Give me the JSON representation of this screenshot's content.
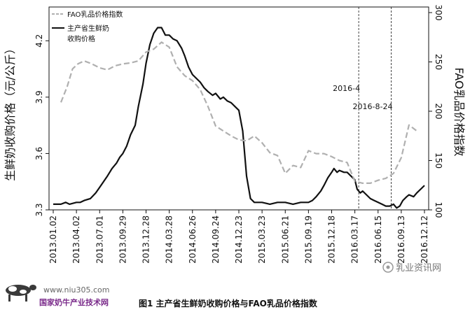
{
  "caption": "图1 主产省生鲜奶收购价格与FAO乳品价格指数",
  "watermark": {
    "site": "www.niu305.com",
    "org": "国家奶牛产业技术网",
    "brand": "乳业资讯网"
  },
  "colors": {
    "milk": "#111111",
    "fao": "#b0b0b0",
    "axis": "#111111",
    "marker": "#444444"
  },
  "chart_data": {
    "type": "line",
    "ylabel": "生鲜奶收购价格（元/公斤）",
    "y2label": "FAO乳品价格指数",
    "ylim": [
      3.3,
      4.35
    ],
    "y2lim": [
      100,
      300
    ],
    "yticks": [
      3.3,
      3.6,
      3.9,
      4.2
    ],
    "y2ticks": [
      100,
      150,
      200,
      250,
      300
    ],
    "xlim": [
      0,
      48
    ],
    "x_tick_labels": [
      "2013.01.02",
      "2013.04.02",
      "2013.07.01",
      "2013.09.29",
      "2013.12.28",
      "2014.03.28",
      "2014.06.26",
      "2014.09.24",
      "2014.12.23",
      "2015.03.23",
      "2015.06.21",
      "2015.09.19",
      "2015.12.18",
      "2016.03.17",
      "2016.06.15",
      "2016.09.13",
      "2016.12.12"
    ],
    "x_tick_positions": [
      0,
      3,
      6,
      9,
      12,
      15,
      18,
      21,
      24,
      27,
      30,
      33,
      36,
      39,
      42,
      45,
      48
    ],
    "legend": {
      "position": "top-left",
      "entries": [
        "FAO乳品价格指数",
        "主产省生鲜奶收购价格"
      ]
    },
    "annotations": [
      {
        "label": "2016-4",
        "x": 39.5
      },
      {
        "label": "2016-8-24",
        "x": 43.7
      }
    ],
    "series": [
      {
        "name": "主产省生鲜奶收购价格",
        "axis": "left",
        "style": "solid",
        "x": [
          0,
          1,
          1.6,
          2.1,
          3,
          3.5,
          4,
          4.8,
          5.5,
          6,
          6.5,
          7,
          7.6,
          8.2,
          8.6,
          9,
          9.5,
          10,
          10.6,
          11,
          11.6,
          12,
          12.5,
          13,
          13.5,
          14,
          14.5,
          15,
          15.5,
          16,
          16.6,
          17,
          17.5,
          18,
          18.5,
          19,
          19.5,
          20,
          20.6,
          21,
          21.6,
          22,
          22.5,
          23,
          23.5,
          24,
          24.5,
          25,
          25.5,
          26,
          26.5,
          27,
          28,
          29,
          30,
          31,
          32,
          33,
          33.5,
          34,
          34.6,
          35,
          35.5,
          36,
          36.3,
          36.7,
          37,
          37.6,
          38,
          38.5,
          39,
          39.3,
          39.7,
          40,
          40.5,
          41,
          41.5,
          42,
          42.5,
          43,
          43.5,
          44,
          44.4,
          44.8,
          45.2,
          45.7,
          46,
          46.6,
          47,
          47.5,
          48
        ],
        "y": [
          3.33,
          3.33,
          3.34,
          3.33,
          3.34,
          3.34,
          3.35,
          3.36,
          3.39,
          3.42,
          3.45,
          3.48,
          3.52,
          3.55,
          3.58,
          3.6,
          3.64,
          3.7,
          3.75,
          3.85,
          3.97,
          4.08,
          4.18,
          4.24,
          4.27,
          4.27,
          4.23,
          4.23,
          4.21,
          4.2,
          4.16,
          4.12,
          4.06,
          4.02,
          4.0,
          3.98,
          3.95,
          3.93,
          3.91,
          3.92,
          3.89,
          3.9,
          3.88,
          3.87,
          3.85,
          3.83,
          3.72,
          3.48,
          3.36,
          3.34,
          3.34,
          3.34,
          3.33,
          3.34,
          3.34,
          3.33,
          3.34,
          3.34,
          3.35,
          3.37,
          3.4,
          3.43,
          3.47,
          3.5,
          3.52,
          3.5,
          3.51,
          3.5,
          3.5,
          3.48,
          3.46,
          3.41,
          3.39,
          3.4,
          3.38,
          3.36,
          3.35,
          3.34,
          3.33,
          3.32,
          3.32,
          3.33,
          3.31,
          3.32,
          3.35,
          3.37,
          3.38,
          3.37,
          3.39,
          3.41,
          3.43
        ]
      },
      {
        "name": "FAO乳品价格指数",
        "axis": "right",
        "style": "dashed",
        "x": [
          1,
          1.8,
          2.5,
          3.2,
          4,
          5,
          6,
          7,
          8,
          9,
          10,
          11,
          12,
          13,
          14,
          15,
          16,
          17,
          18,
          19,
          20,
          21,
          22,
          23,
          24,
          25,
          26,
          27,
          28,
          29,
          30,
          31,
          32,
          33,
          34,
          35,
          36,
          37,
          38,
          39,
          40,
          41,
          42,
          43,
          44,
          45,
          46,
          47
        ],
        "y": [
          209,
          225,
          243,
          248,
          251,
          248,
          244,
          242,
          246,
          248,
          249,
          251,
          260,
          263,
          270,
          265,
          245,
          236,
          231,
          222,
          205,
          185,
          180,
          175,
          171,
          170,
          175,
          168,
          158,
          155,
          137,
          145,
          143,
          160,
          157,
          157,
          154,
          150,
          148,
          129,
          127,
          127,
          130,
          132,
          137,
          153,
          186,
          180
        ]
      }
    ]
  }
}
